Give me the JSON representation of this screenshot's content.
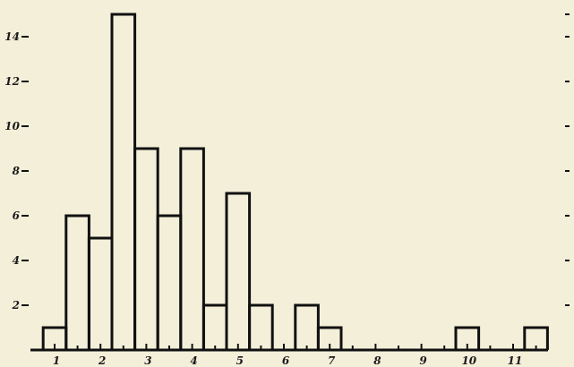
{
  "chart_data": {
    "type": "bar",
    "title": "",
    "xlabel": "",
    "ylabel": "",
    "bin_width": 0.5,
    "bins": [
      {
        "x0": 0.75,
        "x1": 1.25,
        "value": 1
      },
      {
        "x0": 1.25,
        "x1": 1.75,
        "value": 6
      },
      {
        "x0": 1.75,
        "x1": 2.25,
        "value": 5
      },
      {
        "x0": 2.25,
        "x1": 2.75,
        "value": 15
      },
      {
        "x0": 2.75,
        "x1": 3.25,
        "value": 9
      },
      {
        "x0": 3.25,
        "x1": 3.75,
        "value": 6
      },
      {
        "x0": 3.75,
        "x1": 4.25,
        "value": 9
      },
      {
        "x0": 4.25,
        "x1": 4.75,
        "value": 2
      },
      {
        "x0": 4.75,
        "x1": 5.25,
        "value": 7
      },
      {
        "x0": 5.25,
        "x1": 5.75,
        "value": 2
      },
      {
        "x0": 6.25,
        "x1": 6.75,
        "value": 2
      },
      {
        "x0": 6.75,
        "x1": 7.25,
        "value": 1
      },
      {
        "x0": 9.75,
        "x1": 10.25,
        "value": 1
      },
      {
        "x0": 11.25,
        "x1": 11.75,
        "value": 1
      }
    ],
    "x_ticks": [
      {
        "value": 1,
        "label": "1"
      },
      {
        "value": 2,
        "label": "2"
      },
      {
        "value": 3,
        "label": "3"
      },
      {
        "value": 4,
        "label": "4"
      },
      {
        "value": 5,
        "label": "5"
      },
      {
        "value": 6,
        "label": "6"
      },
      {
        "value": 7,
        "label": "7"
      },
      {
        "value": 8,
        "label": "8"
      },
      {
        "value": 9,
        "label": "9"
      },
      {
        "value": 10,
        "label": "10"
      },
      {
        "value": 11,
        "label": "11"
      }
    ],
    "y_ticks": [
      {
        "value": 2,
        "label": "2"
      },
      {
        "value": 4,
        "label": "4"
      },
      {
        "value": 6,
        "label": "6"
      },
      {
        "value": 8,
        "label": "8"
      },
      {
        "value": 10,
        "label": "10"
      },
      {
        "value": 12,
        "label": "12"
      },
      {
        "value": 14,
        "label": "14"
      }
    ],
    "xlim": [
      0.6,
      12.0
    ],
    "ylim": [
      0,
      15
    ],
    "grid": false,
    "right_axis_ticks": true,
    "line_color": "#111111",
    "background_color": "#f3efd9"
  }
}
